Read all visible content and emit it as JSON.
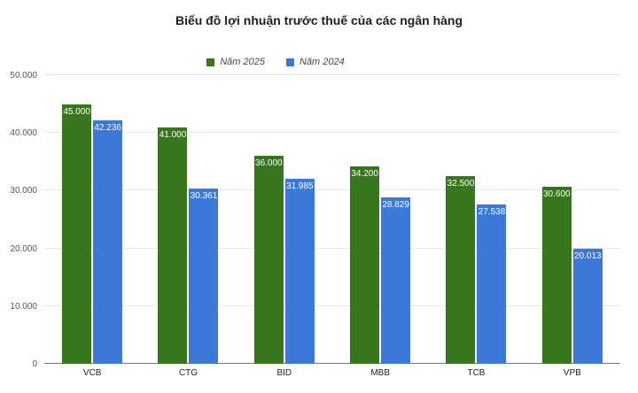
{
  "chart_data": {
    "type": "bar",
    "title": "Biểu đồ lợi nhuận trước thuế của các ngân hàng",
    "categories": [
      "VCB",
      "CTG",
      "BID",
      "MBB",
      "TCB",
      "VPB"
    ],
    "series": [
      {
        "name": "Năm 2025",
        "color": "#38761d",
        "values": [
          45000,
          41000,
          36000,
          34200,
          32500,
          30600
        ],
        "labels": [
          "45.000",
          "41.000",
          "36.000",
          "34.200",
          "32.500",
          "30.600"
        ]
      },
      {
        "name": "Năm 2024",
        "color": "#3c78d8",
        "values": [
          42236,
          30361,
          31985,
          28829,
          27538,
          20013
        ],
        "labels": [
          "42.236",
          "30.361",
          "31.985",
          "28.829",
          "27.538",
          "20.013"
        ]
      }
    ],
    "y_axis": {
      "min": 0,
      "max": 50000,
      "tick_interval": 10000,
      "tick_labels": [
        "0",
        "10.000",
        "20.000",
        "30.000",
        "40.000",
        "50.000"
      ]
    },
    "grid": true,
    "legend_position": "top",
    "value_labels": "inside-top",
    "background_color": "#ffffff",
    "gridline_color": "#e6e6e6",
    "baseline_color": "#757575"
  }
}
